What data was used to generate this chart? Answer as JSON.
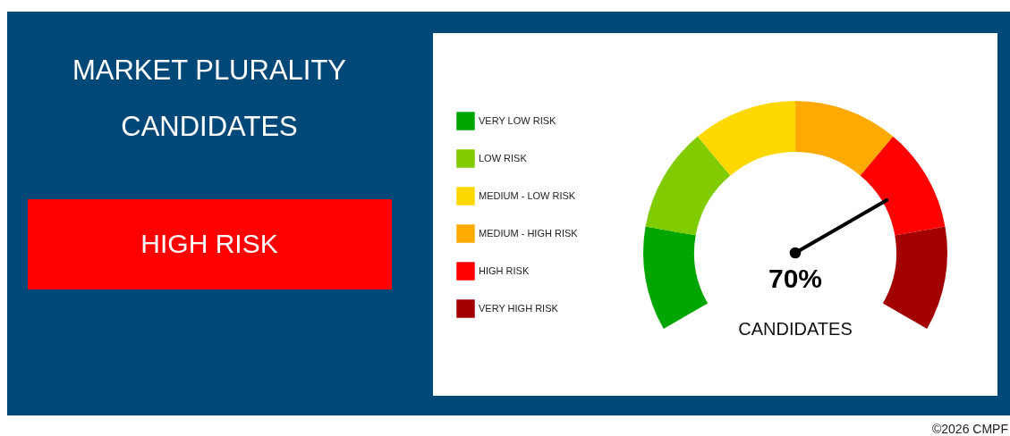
{
  "chart_data": {
    "type": "donut",
    "title": "MARKET PLURALITY CANDIDATES",
    "categories": [
      "VERY LOW RISK",
      "LOW RISK",
      "MEDIUM - LOW RISK",
      "MEDIUM - HIGH RISK",
      "HIGH RISK",
      "VERY HIGH RISK"
    ],
    "values": [
      16.67,
      16.67,
      16.67,
      16.67,
      16.67,
      16.65
    ],
    "colors": [
      "#00a600",
      "#80cc00",
      "#ffd800",
      "#ffaa00",
      "#ff0000",
      "#a30000"
    ],
    "needle": "HIGH RISK",
    "legend": "left",
    "annotations": [
      "70%",
      "CANDIDATES",
      "©2026 CMPF"
    ]
  }
}
